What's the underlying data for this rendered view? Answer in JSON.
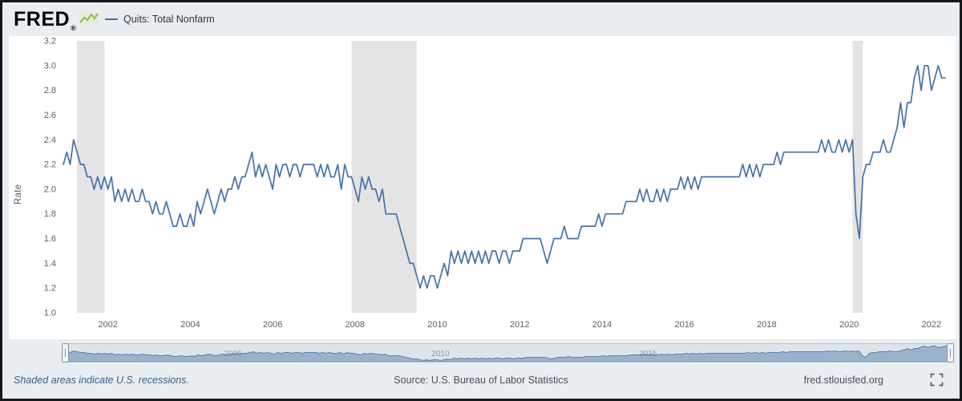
{
  "header": {
    "logo": "FRED",
    "logo_reg": "®",
    "legend_label": "Quits: Total Nonfarm"
  },
  "chart_data": {
    "type": "line",
    "title": "Quits: Total Nonfarm",
    "ylabel": "Rate",
    "frequency": "monthly",
    "x_start": {
      "year": 2000,
      "month": 12
    },
    "x_end": {
      "year": 2022,
      "month": 5
    },
    "ylim": [
      1.0,
      3.2
    ],
    "xlim": [
      2000.917,
      2022.45
    ],
    "yticks": [
      1.0,
      1.2,
      1.4,
      1.6,
      1.8,
      2.0,
      2.2,
      2.4,
      2.6,
      2.8,
      3.0,
      3.2
    ],
    "xticks": [
      2002,
      2004,
      2006,
      2008,
      2010,
      2012,
      2014,
      2016,
      2018,
      2020,
      2022
    ],
    "series_color": "#4572a7",
    "recession_color": "#e4e4e4",
    "recessions": [
      [
        2001.25,
        2001.917
      ],
      [
        2007.917,
        2009.5
      ],
      [
        2020.083,
        2020.333
      ]
    ],
    "values": [
      2.2,
      2.3,
      2.2,
      2.4,
      2.3,
      2.2,
      2.2,
      2.1,
      2.1,
      2.0,
      2.1,
      2.0,
      2.1,
      2.0,
      2.1,
      1.9,
      2.0,
      1.9,
      2.0,
      1.9,
      2.0,
      1.9,
      1.9,
      2.0,
      1.9,
      1.9,
      1.8,
      1.9,
      1.8,
      1.8,
      1.9,
      1.8,
      1.7,
      1.7,
      1.8,
      1.7,
      1.7,
      1.8,
      1.7,
      1.9,
      1.8,
      1.9,
      2.0,
      1.9,
      1.8,
      1.9,
      2.0,
      1.9,
      2.0,
      2.0,
      2.1,
      2.0,
      2.1,
      2.1,
      2.2,
      2.3,
      2.1,
      2.2,
      2.1,
      2.2,
      2.1,
      2.0,
      2.2,
      2.1,
      2.2,
      2.2,
      2.1,
      2.2,
      2.2,
      2.1,
      2.2,
      2.2,
      2.2,
      2.2,
      2.1,
      2.2,
      2.1,
      2.2,
      2.1,
      2.1,
      2.2,
      2.0,
      2.2,
      2.1,
      2.1,
      2.0,
      1.9,
      2.1,
      2.0,
      2.1,
      2.0,
      2.0,
      1.9,
      2.0,
      1.8,
      1.8,
      1.8,
      1.8,
      1.7,
      1.6,
      1.5,
      1.4,
      1.4,
      1.3,
      1.2,
      1.3,
      1.2,
      1.3,
      1.3,
      1.2,
      1.3,
      1.4,
      1.3,
      1.5,
      1.4,
      1.5,
      1.4,
      1.5,
      1.4,
      1.5,
      1.4,
      1.5,
      1.4,
      1.5,
      1.4,
      1.5,
      1.5,
      1.4,
      1.5,
      1.5,
      1.4,
      1.5,
      1.5,
      1.5,
      1.6,
      1.6,
      1.6,
      1.6,
      1.6,
      1.6,
      1.5,
      1.4,
      1.5,
      1.6,
      1.6,
      1.6,
      1.7,
      1.6,
      1.6,
      1.6,
      1.6,
      1.7,
      1.7,
      1.7,
      1.7,
      1.7,
      1.8,
      1.7,
      1.8,
      1.8,
      1.8,
      1.8,
      1.8,
      1.8,
      1.9,
      1.9,
      1.9,
      1.9,
      2.0,
      1.9,
      2.0,
      1.9,
      1.9,
      2.0,
      1.9,
      2.0,
      1.9,
      2.0,
      2.0,
      2.0,
      2.1,
      2.0,
      2.1,
      2.0,
      2.1,
      2.0,
      2.1,
      2.1,
      2.1,
      2.1,
      2.1,
      2.1,
      2.1,
      2.1,
      2.1,
      2.1,
      2.1,
      2.1,
      2.2,
      2.1,
      2.2,
      2.1,
      2.2,
      2.1,
      2.2,
      2.2,
      2.2,
      2.2,
      2.3,
      2.2,
      2.3,
      2.3,
      2.3,
      2.3,
      2.3,
      2.3,
      2.3,
      2.3,
      2.3,
      2.3,
      2.3,
      2.4,
      2.3,
      2.4,
      2.3,
      2.3,
      2.4,
      2.3,
      2.4,
      2.3,
      2.4,
      1.8,
      1.6,
      2.1,
      2.2,
      2.2,
      2.3,
      2.3,
      2.3,
      2.4,
      2.3,
      2.3,
      2.4,
      2.5,
      2.7,
      2.5,
      2.7,
      2.7,
      2.9,
      3.0,
      2.8,
      3.0,
      3.0,
      2.8,
      2.9,
      3.0,
      2.9,
      2.9
    ]
  },
  "navigator": {
    "labels": [
      2005,
      2010,
      2015
    ],
    "fill": "#8aa6c6",
    "stroke": "#5b84ad",
    "track": "#dde4eb"
  },
  "footer": {
    "recession_note": "Shaded areas indicate U.S. recessions.",
    "source": "Source: U.S. Bureau of Labor Statistics",
    "site": "fred.stlouisfed.org"
  }
}
